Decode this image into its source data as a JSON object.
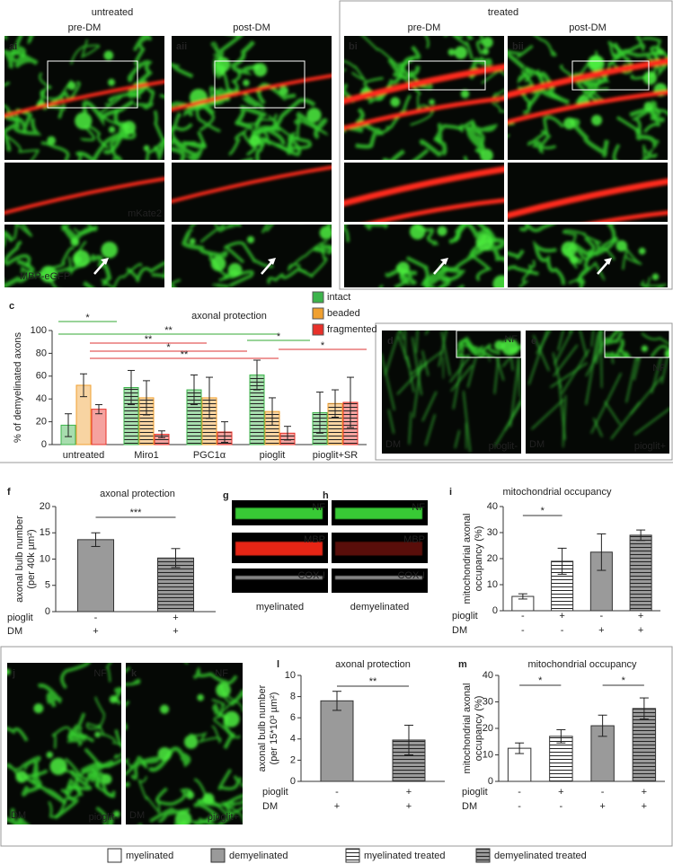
{
  "micrographs": {
    "groups": [
      {
        "title": "untreated",
        "columns": [
          {
            "label": "ai",
            "title": "pre-DM"
          },
          {
            "label": "aii",
            "title": "post-DM"
          }
        ]
      },
      {
        "title": "treated",
        "columns": [
          {
            "label": "bi",
            "title": "pre-DM"
          },
          {
            "label": "bii",
            "title": "post-DM"
          }
        ]
      }
    ],
    "channels": [
      "mKate2",
      "MBP-eGFP"
    ]
  },
  "stained": [
    {
      "label": "d",
      "marker": "NF",
      "condition": "DM",
      "treatment": "pioglit-"
    },
    {
      "label": "e",
      "marker": "NF",
      "condition": "DM",
      "treatment": "pioglit+"
    }
  ],
  "profiles": {
    "panels": [
      {
        "label": "g",
        "state": "myelinated"
      },
      {
        "label": "h",
        "state": "demyelinated"
      }
    ],
    "markers": [
      "NF",
      "MBP",
      "COX-I"
    ]
  },
  "cultures": [
    {
      "label": "j",
      "marker": "NF",
      "condition": "DM",
      "treatment": "pioglit-"
    },
    {
      "label": "k",
      "marker": "NF",
      "condition": "DM",
      "treatment": "pioglit+"
    }
  ],
  "legend": [
    {
      "label": "myelinated",
      "fill": "#ffffff",
      "hatched": false
    },
    {
      "label": "demyelinated",
      "fill": "#9a9a9a",
      "hatched": false
    },
    {
      "label": "myelinated treated",
      "fill": "#ffffff",
      "hatched": true
    },
    {
      "label": "demyelinated treated",
      "fill": "#9a9a9a",
      "hatched": true
    }
  ],
  "chart_data": [
    {
      "type": "grouped_bar",
      "panel": "c",
      "title": "axonal protection",
      "ylabel": [
        "% of demyelinated axons"
      ],
      "categories": [
        "untreated",
        "Miro1",
        "PGC1α",
        "pioglit",
        "pioglit+SR"
      ],
      "hatched": [
        false,
        true,
        true,
        true,
        true
      ],
      "series": [
        {
          "name": "intact",
          "color": "#3cb44b",
          "values": [
            17,
            50,
            48,
            61,
            28
          ],
          "errors": [
            10,
            15,
            13,
            13,
            18
          ]
        },
        {
          "name": "beaded",
          "color": "#f0a030",
          "values": [
            52,
            41,
            41,
            29,
            36
          ],
          "errors": [
            10,
            15,
            18,
            12,
            12
          ]
        },
        {
          "name": "fragmented",
          "color": "#e8312a",
          "values": [
            31,
            9,
            11,
            10,
            37
          ],
          "errors": [
            4,
            3,
            9,
            6,
            22
          ]
        }
      ],
      "ylim": [
        0,
        100
      ],
      "yticks": [
        0,
        20,
        40,
        60,
        80,
        100
      ],
      "significance": [
        "*",
        "**",
        "**",
        "*",
        "**",
        "*",
        "*"
      ]
    },
    {
      "type": "bar",
      "panel": "f",
      "title": "axonal protection",
      "ylabel": [
        "axonal bulb number",
        "(per 40k µm²)"
      ],
      "values": [
        13.7,
        10.2
      ],
      "errors": [
        1.3,
        1.8
      ],
      "fills": [
        "#9a9a9a",
        "#9a9a9a"
      ],
      "hatched": [
        false,
        true
      ],
      "conditions": [
        {
          "name": "pioglit",
          "values": [
            "-",
            "+"
          ]
        },
        {
          "name": "DM",
          "values": [
            "+",
            "+"
          ]
        }
      ],
      "ylim": [
        0,
        20
      ],
      "yticks": [
        0,
        5,
        10,
        15,
        20
      ],
      "significance": [
        "***"
      ]
    },
    {
      "type": "bar",
      "panel": "i",
      "title": "mitochondrial occupancy",
      "ylabel": [
        "mitochondrial axonal",
        "occupancy (%)"
      ],
      "values": [
        5.5,
        19,
        22.5,
        29
      ],
      "errors": [
        1,
        5,
        7,
        2
      ],
      "fills": [
        "#ffffff",
        "#ffffff",
        "#9a9a9a",
        "#9a9a9a"
      ],
      "hatched": [
        false,
        true,
        false,
        true
      ],
      "conditions": [
        {
          "name": "pioglit",
          "values": [
            "-",
            "+",
            "-",
            "+"
          ]
        },
        {
          "name": "DM",
          "values": [
            "-",
            "-",
            "+",
            "+"
          ]
        }
      ],
      "ylim": [
        0,
        40
      ],
      "yticks": [
        0,
        10,
        20,
        30,
        40
      ],
      "significance": [
        "*"
      ]
    },
    {
      "type": "bar",
      "panel": "l",
      "title": "axonal protection",
      "ylabel": [
        "axonal bulb number",
        "(per 15*10³ µm²)"
      ],
      "values": [
        7.6,
        3.9
      ],
      "errors": [
        0.9,
        1.4
      ],
      "fills": [
        "#9a9a9a",
        "#9a9a9a"
      ],
      "hatched": [
        false,
        true
      ],
      "conditions": [
        {
          "name": "pioglit",
          "values": [
            "-",
            "+"
          ]
        },
        {
          "name": "DM",
          "values": [
            "+",
            "+"
          ]
        }
      ],
      "ylim": [
        0,
        10
      ],
      "yticks": [
        0,
        2,
        4,
        6,
        8,
        10
      ],
      "significance": [
        "**"
      ]
    },
    {
      "type": "bar",
      "panel": "m",
      "title": "mitochondrial occupancy",
      "ylabel": [
        "mitochondrial axonal",
        "occupancy (%)"
      ],
      "values": [
        12.5,
        17,
        21,
        27.5
      ],
      "errors": [
        2,
        2.5,
        4,
        4
      ],
      "fills": [
        "#ffffff",
        "#ffffff",
        "#9a9a9a",
        "#9a9a9a"
      ],
      "hatched": [
        false,
        true,
        false,
        true
      ],
      "conditions": [
        {
          "name": "pioglit",
          "values": [
            "-",
            "+",
            "-",
            "+"
          ]
        },
        {
          "name": "DM",
          "values": [
            "-",
            "-",
            "+",
            "+"
          ]
        }
      ],
      "ylim": [
        0,
        40
      ],
      "yticks": [
        0,
        10,
        20,
        30,
        40
      ],
      "significance": [
        "*",
        "*"
      ]
    }
  ]
}
